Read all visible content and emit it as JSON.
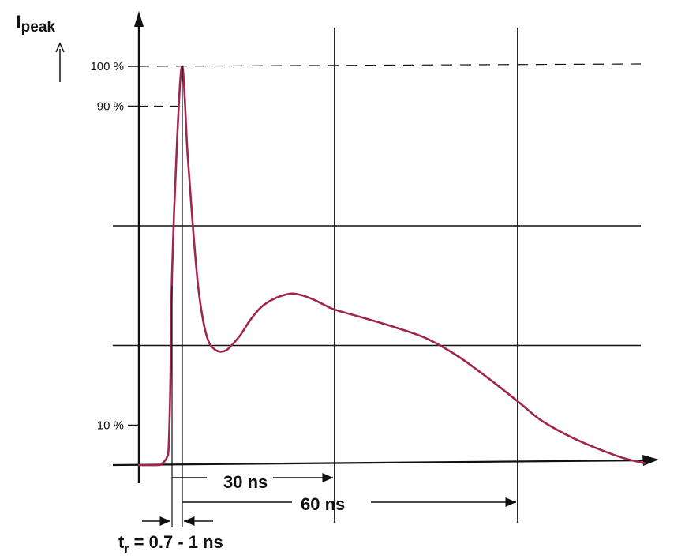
{
  "chart_data": {
    "type": "line",
    "title": "",
    "ylabel": {
      "main": "I",
      "sub": "peak"
    },
    "xlabel": "",
    "y_unit": "% of I_peak",
    "y_tick_labels": [
      "100 %",
      "90 %",
      "10 %"
    ],
    "y_tick_values": [
      100,
      90,
      10
    ],
    "grid": true,
    "line_color": "#a0264e",
    "series": [
      {
        "x_ns": [
          -10,
          -4,
          -3,
          -2,
          -1.5,
          -1,
          -0.5,
          0,
          0.5,
          1,
          2,
          3,
          4,
          5,
          6,
          7,
          8,
          9,
          10,
          12,
          14,
          16,
          18,
          20,
          22,
          24,
          26,
          28,
          30,
          35,
          40,
          45,
          50,
          55,
          60,
          65,
          70,
          75,
          80,
          85,
          90
        ],
        "y_pct": [
          0,
          0,
          0.3,
          1.2,
          2,
          4.5,
          20,
          48,
          82,
          100,
          78,
          60,
          45,
          36,
          31,
          29.2,
          28.5,
          28.6,
          29.5,
          32.5,
          36.5,
          39.6,
          41.4,
          42.5,
          43,
          42.5,
          41.5,
          40.2,
          39,
          36.8,
          34.5,
          31.8,
          27.5,
          22,
          16,
          11.6,
          8.4,
          5.8,
          3.6,
          1.7,
          0.4
        ]
      }
    ],
    "gridlines_y_pct": [
      60,
      30
    ],
    "gridlines_x_ns": [
      30,
      60
    ],
    "annotations": {
      "t30": "30 ns",
      "t60": "60 ns",
      "tr_main": "t",
      "tr_sub": "r",
      "tr_value": " = 0.7 - 1 ns"
    }
  }
}
